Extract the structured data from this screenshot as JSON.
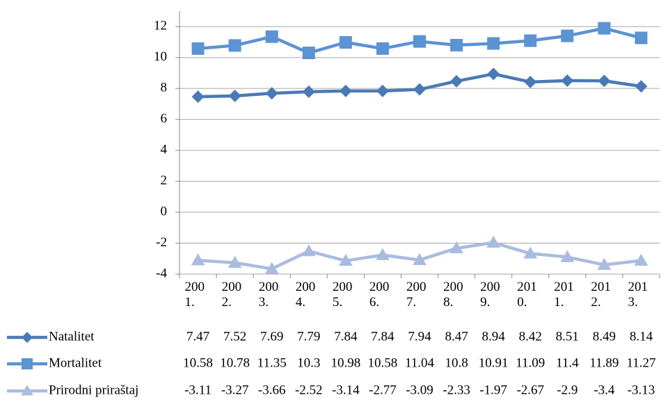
{
  "chart_data": {
    "type": "line",
    "categories": [
      "2001.",
      "2002.",
      "2003.",
      "2004.",
      "2005.",
      "2006.",
      "2007.",
      "2008.",
      "2009.",
      "2010.",
      "2011.",
      "2012.",
      "2013."
    ],
    "series": [
      {
        "name": "Natalitet",
        "color": "#4a7ab5",
        "marker": "diamond",
        "values": [
          7.47,
          7.52,
          7.69,
          7.79,
          7.84,
          7.84,
          7.94,
          8.47,
          8.94,
          8.42,
          8.51,
          8.49,
          8.14
        ]
      },
      {
        "name": "Mortalitet",
        "color": "#5b93d3",
        "marker": "square",
        "values": [
          10.58,
          10.78,
          11.35,
          10.3,
          10.98,
          10.58,
          11.04,
          10.8,
          10.91,
          11.09,
          11.4,
          11.89,
          11.27
        ]
      },
      {
        "name": "Prirodni priraštaj",
        "color": "#a9bcdf",
        "marker": "triangle",
        "values": [
          -3.11,
          -3.27,
          -3.66,
          -2.52,
          -3.14,
          -2.77,
          -3.09,
          -2.33,
          -1.97,
          -2.67,
          -2.9,
          -3.4,
          -3.13
        ]
      }
    ],
    "ylim": [
      -4,
      13
    ],
    "yticks": [
      -4,
      -2,
      0,
      2,
      4,
      6,
      8,
      10,
      12
    ],
    "grid": true,
    "data_table": true
  }
}
